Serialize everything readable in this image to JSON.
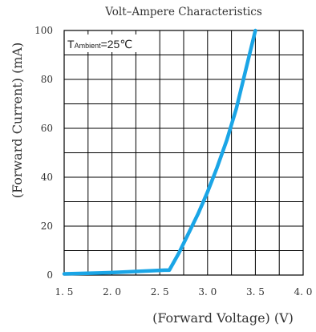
{
  "chart_data": {
    "type": "line",
    "title": "Volt–Ampere Characteristics",
    "xlabel": "(Forward Voltage) (V)",
    "ylabel": "(Forward Current) (mA)",
    "xlim": [
      1.5,
      4.0
    ],
    "ylim": [
      0,
      100
    ],
    "x_ticks": [
      {
        "value": 1.5,
        "label": "1. 5"
      },
      {
        "value": 2.0,
        "label": "2. 0"
      },
      {
        "value": 2.5,
        "label": "2. 5"
      },
      {
        "value": 3.0,
        "label": "3. 0"
      },
      {
        "value": 3.5,
        "label": "3. 5"
      },
      {
        "value": 4.0,
        "label": "4. 0"
      }
    ],
    "y_ticks": [
      {
        "value": 0,
        "label": "0"
      },
      {
        "value": 20,
        "label": "20"
      },
      {
        "value": 40,
        "label": "40"
      },
      {
        "value": 60,
        "label": "60"
      },
      {
        "value": 80,
        "label": "80"
      },
      {
        "value": 100,
        "label": "100"
      }
    ],
    "grid": true,
    "x_minor_step": 0.25,
    "y_minor_step": 10,
    "annotation": {
      "main": "T",
      "sub": "Ambient",
      "rest": "=25℃"
    },
    "series": [
      {
        "color": "#1aa5e6",
        "x": [
          1.5,
          2.0,
          2.55,
          2.6,
          2.7,
          2.8,
          2.9,
          3.0,
          3.1,
          3.2,
          3.3,
          3.4,
          3.5
        ],
        "y": [
          0.5,
          1.0,
          2.0,
          2.0,
          9.0,
          17.0,
          25.0,
          34.0,
          44.0,
          55.0,
          68.0,
          84.0,
          100.0
        ]
      }
    ]
  }
}
